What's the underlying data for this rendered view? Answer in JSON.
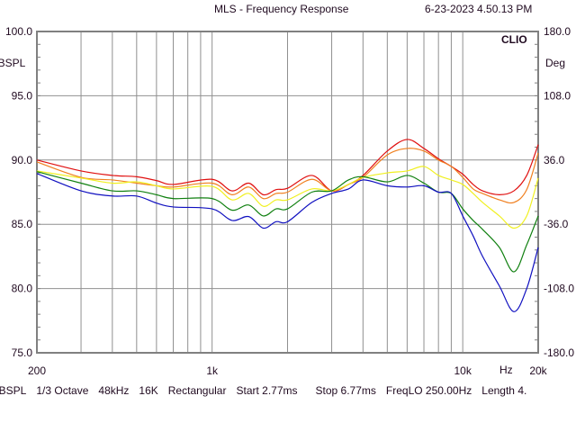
{
  "header": {
    "title": "MLS - Frequency Response",
    "timestamp": "6-23-2023 4.50.13 PM",
    "brand": "CLIO"
  },
  "status_bar": [
    "dBSPL",
    "1/3 Octave",
    "48kHz",
    "16K",
    "Rectangular",
    "Start 2.77ms",
    "Stop 6.77ms",
    "FreqLO 250.00Hz",
    "Length 4."
  ],
  "chart_data": {
    "type": "line",
    "title": "MLS - Frequency Response",
    "xlabel": "Hz",
    "ylabel": "dBSPL",
    "y2label": "Deg",
    "xscale": "log",
    "xlim": [
      200,
      20000
    ],
    "ylim": [
      75,
      100
    ],
    "y2lim": [
      -180,
      180
    ],
    "grid": true,
    "x_ticks": [
      {
        "v": 200,
        "label": "200"
      },
      {
        "v": 1000,
        "label": "1k"
      },
      {
        "v": 10000,
        "label": "10k"
      },
      {
        "v": 20000,
        "label": "20k"
      }
    ],
    "x_grid": [
      300,
      400,
      500,
      600,
      700,
      800,
      900,
      1000,
      2000,
      3000,
      4000,
      5000,
      6000,
      7000,
      8000,
      9000,
      10000
    ],
    "y_ticks": [
      {
        "v": 100,
        "label": "100.0"
      },
      {
        "v": 95,
        "label": "95.0"
      },
      {
        "v": 90,
        "label": "90.0"
      },
      {
        "v": 85,
        "label": "85.0"
      },
      {
        "v": 80,
        "label": "80.0"
      },
      {
        "v": 75,
        "label": "75.0"
      }
    ],
    "y2_ticks": [
      {
        "v": 180,
        "label": "180.0"
      },
      {
        "v": 108,
        "label": "108.0"
      },
      {
        "v": 36,
        "label": "36.0"
      },
      {
        "v": -36,
        "label": "-36.0"
      },
      {
        "v": -108,
        "label": "-108.0"
      },
      {
        "v": -180,
        "label": "-180.0"
      }
    ],
    "x": [
      200,
      300,
      400,
      500,
      600,
      700,
      1000,
      1200,
      1400,
      1600,
      1800,
      2000,
      2500,
      3000,
      3500,
      4000,
      5000,
      6000,
      7000,
      8000,
      9000,
      10000,
      11000,
      12000,
      14000,
      16000,
      18000,
      20000
    ],
    "series": [
      {
        "name": "red",
        "color": "#e01010",
        "values": [
          90.0,
          89.15,
          88.8,
          88.7,
          88.4,
          88.1,
          88.5,
          87.6,
          88.2,
          87.3,
          87.7,
          87.8,
          88.8,
          87.6,
          88.1,
          88.8,
          90.7,
          91.6,
          90.9,
          90.1,
          89.5,
          88.9,
          88.1,
          87.6,
          87.3,
          87.6,
          88.8,
          91.2
        ]
      },
      {
        "name": "orange",
        "color": "#f08020",
        "values": [
          89.85,
          88.65,
          88.45,
          88.2,
          88.0,
          87.9,
          88.2,
          87.3,
          87.9,
          87.0,
          87.4,
          87.5,
          88.5,
          87.6,
          88.1,
          88.65,
          90.4,
          90.9,
          90.7,
          90.0,
          89.5,
          88.65,
          87.75,
          87.4,
          86.9,
          86.7,
          87.7,
          90.55
        ]
      },
      {
        "name": "yellow",
        "color": "#f0f020",
        "values": [
          89.15,
          88.6,
          88.2,
          88.3,
          88.0,
          87.75,
          87.95,
          86.9,
          87.4,
          86.4,
          86.9,
          86.9,
          87.75,
          87.6,
          88.1,
          88.65,
          89.0,
          89.15,
          89.5,
          88.8,
          88.45,
          88.1,
          87.4,
          86.7,
          85.65,
          84.7,
          85.65,
          88.6
        ]
      },
      {
        "name": "green",
        "color": "#108010",
        "values": [
          89.1,
          88.2,
          87.6,
          87.6,
          87.3,
          87.0,
          87.0,
          86.1,
          86.5,
          85.65,
          86.2,
          86.2,
          87.5,
          87.6,
          88.45,
          88.7,
          88.3,
          88.8,
          88.2,
          87.5,
          87.4,
          86.2,
          85.3,
          84.6,
          83.2,
          81.3,
          83.4,
          85.65
        ]
      },
      {
        "name": "blue",
        "color": "#1010c0",
        "values": [
          88.95,
          87.6,
          87.2,
          87.2,
          86.65,
          86.35,
          86.2,
          85.3,
          85.6,
          84.7,
          85.2,
          85.2,
          86.7,
          87.4,
          87.75,
          88.45,
          88.0,
          87.9,
          88.0,
          87.5,
          87.4,
          85.65,
          84.1,
          82.5,
          80.2,
          78.2,
          80.0,
          83.2
        ]
      }
    ]
  }
}
